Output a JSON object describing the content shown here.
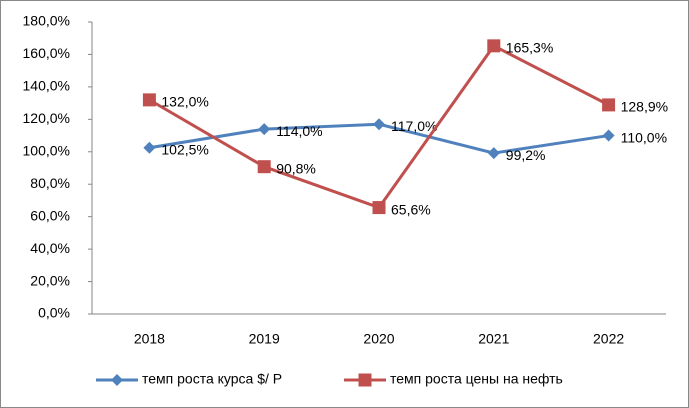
{
  "chart_data": {
    "type": "line",
    "categories": [
      "2018",
      "2019",
      "2020",
      "2021",
      "2022"
    ],
    "series": [
      {
        "name": "темп роста курса $/ Р",
        "color": "#4f81bd",
        "marker": "diamond",
        "values": [
          102.5,
          114.0,
          117.0,
          99.2,
          110.0
        ],
        "value_labels": [
          "102,5%",
          "114,0%",
          "117,0%",
          "99,2%",
          "110,0%"
        ]
      },
      {
        "name": "темп роста цены на нефть",
        "color": "#c0504d",
        "marker": "square",
        "values": [
          132.0,
          90.8,
          65.6,
          165.3,
          128.9
        ],
        "value_labels": [
          "132,0%",
          "90,8%",
          "65,6%",
          "165,3%",
          "128,9%"
        ]
      }
    ],
    "ylim": [
      0,
      180
    ],
    "yticks": [
      {
        "value": 0,
        "label": "0,0%"
      },
      {
        "value": 20,
        "label": "20,0%"
      },
      {
        "value": 40,
        "label": "40,0%"
      },
      {
        "value": 60,
        "label": "60,0%"
      },
      {
        "value": 80,
        "label": "80,0%"
      },
      {
        "value": 100,
        "label": "100,0%"
      },
      {
        "value": 120,
        "label": "120,0%"
      },
      {
        "value": 140,
        "label": "140,0%"
      },
      {
        "value": 160,
        "label": "160,0%"
      },
      {
        "value": 180,
        "label": "180,0%"
      }
    ],
    "grid": false,
    "legend": "bottom"
  }
}
